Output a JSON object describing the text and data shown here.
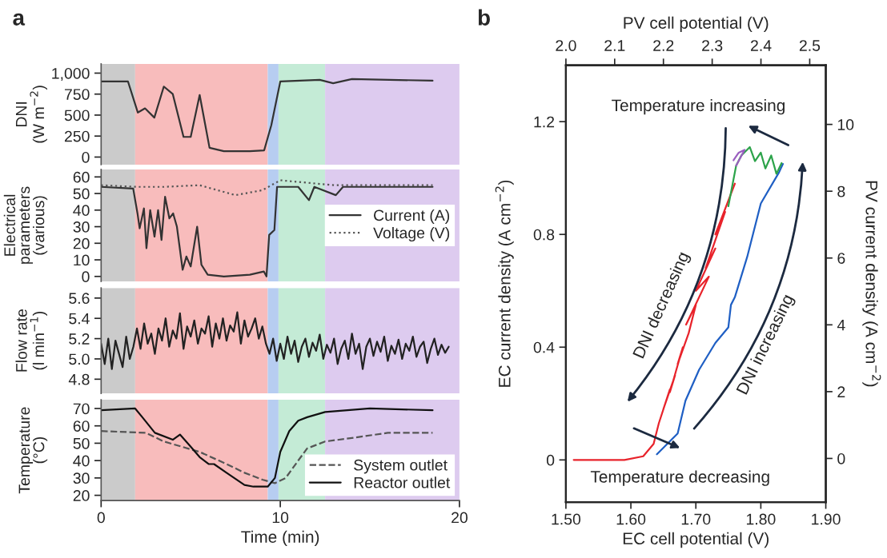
{
  "chart_data": [
    {
      "type": "line",
      "ylabel": "DNI\n(W m$^{−2}$)",
      "annotations": [
        "a"
      ],
      "xlim": [
        0,
        20
      ],
      "ylim": [
        -90,
        1110
      ],
      "yticks": [
        0,
        250,
        500,
        750,
        {
          "value": 1000,
          "label": "1,000"
        }
      ],
      "tick_labels": "y",
      "grid": false,
      "legend": false,
      "bands": [
        {
          "axis": "x",
          "from": 0,
          "to": 1.9,
          "color": "#cbcbcb"
        },
        {
          "axis": "x",
          "from": 1.9,
          "to": 9.3,
          "color": "#f8bcbc"
        },
        {
          "axis": "x",
          "from": 9.3,
          "to": 9.9,
          "color": "#b7cdf1"
        },
        {
          "axis": "x",
          "from": 9.9,
          "to": 12.5,
          "color": "#c4ebd6"
        },
        {
          "axis": "x",
          "from": 12.5,
          "to": 20,
          "color": "#ddcbef"
        }
      ],
      "series": [
        {
          "color": "#333333",
          "line_style": "solid",
          "x": [
            0,
            1.5,
            2.05,
            2.45,
            2.97,
            3.5,
            4.0,
            4.6,
            5.0,
            5.5,
            6.05,
            6.85,
            8.3,
            9.1,
            9.5,
            10.0,
            12.2,
            12.95,
            14.0,
            18.5
          ],
          "values": [
            900,
            900,
            530,
            580,
            470,
            840,
            750,
            240,
            240,
            740,
            110,
            70,
            70,
            80,
            380,
            900,
            920,
            880,
            930,
            910
          ]
        }
      ]
    },
    {
      "type": "line",
      "ylabel": "Electrical\nparameters\n(various)",
      "xlim": [
        0,
        20
      ],
      "ylim": [
        -3,
        64.5
      ],
      "yticks": [
        0,
        10,
        20,
        30,
        40,
        50,
        60
      ],
      "tick_labels": "y",
      "grid": false,
      "legend": "right",
      "bands": [
        {
          "axis": "x",
          "from": 0,
          "to": 1.9,
          "color": "#cbcbcb"
        },
        {
          "axis": "x",
          "from": 1.9,
          "to": 9.3,
          "color": "#f8bcbc"
        },
        {
          "axis": "x",
          "from": 9.3,
          "to": 9.9,
          "color": "#b7cdf1"
        },
        {
          "axis": "x",
          "from": 9.9,
          "to": 12.5,
          "color": "#c4ebd6"
        },
        {
          "axis": "x",
          "from": 12.5,
          "to": 20,
          "color": "#ddcbef"
        }
      ],
      "series": [
        {
          "name": "Current (A)",
          "color": "#333333",
          "line_style": "solid",
          "x": [
            0,
            1.79,
            2.03,
            2.15,
            2.39,
            2.53,
            2.74,
            2.98,
            3.18,
            3.37,
            3.57,
            3.81,
            4.02,
            4.23,
            4.55,
            4.76,
            5.0,
            5.36,
            5.6,
            5.95,
            6.85,
            8.3,
            9.08,
            9.23,
            9.38,
            9.67,
            9.82,
            11.0,
            11.6,
            11.9,
            13.1,
            13.5,
            18.5
          ],
          "values": [
            54,
            53,
            38,
            29,
            41,
            17,
            40,
            24,
            40,
            22,
            48,
            35,
            38,
            30,
            4,
            12,
            6,
            30,
            7,
            1,
            0,
            1,
            3,
            0,
            25,
            28,
            54,
            54,
            46,
            54,
            49,
            54,
            54
          ]
        },
        {
          "name": "Voltage (V)",
          "color": "#555555",
          "line_style": "dotted",
          "x": [
            0,
            2,
            3.5,
            5.5,
            7.5,
            9,
            10,
            12,
            13,
            18.5
          ],
          "values": [
            55,
            54,
            54,
            55,
            49,
            52,
            58,
            56,
            55,
            55
          ]
        }
      ]
    },
    {
      "type": "line",
      "ylabel": "Flow rate\n(l min$^{−1}$)",
      "xlim": [
        0,
        20
      ],
      "ylim": [
        4.66,
        5.7
      ],
      "yticks": [
        4.8,
        {
          "value": 5.0,
          "label": "5.0"
        },
        5.2,
        5.4,
        5.6
      ],
      "tick_labels": "y",
      "grid": false,
      "legend": false,
      "bands": [
        {
          "axis": "x",
          "from": 0,
          "to": 1.9,
          "color": "#cbcbcb"
        },
        {
          "axis": "x",
          "from": 1.9,
          "to": 9.3,
          "color": "#f8bcbc"
        },
        {
          "axis": "x",
          "from": 9.3,
          "to": 9.9,
          "color": "#b7cdf1"
        },
        {
          "axis": "x",
          "from": 9.9,
          "to": 12.5,
          "color": "#c4ebd6"
        },
        {
          "axis": "x",
          "from": 12.5,
          "to": 20,
          "color": "#ddcbef"
        }
      ],
      "series": [
        {
          "color": "#222222",
          "line_style": "solid",
          "x": [
            0,
            0.2,
            0.4,
            0.6,
            0.8,
            1.0,
            1.2,
            1.4,
            1.6,
            1.8,
            2.0,
            2.2,
            2.4,
            2.6,
            2.8,
            3.0,
            3.2,
            3.4,
            3.6,
            3.8,
            4.0,
            4.2,
            4.4,
            4.6,
            4.8,
            5.0,
            5.2,
            5.4,
            5.6,
            5.8,
            6.0,
            6.2,
            6.4,
            6.6,
            6.8,
            7.0,
            7.2,
            7.4,
            7.6,
            7.8,
            8.0,
            8.2,
            8.4,
            8.6,
            8.8,
            9.0,
            9.2,
            9.4,
            9.6,
            9.8,
            10.0,
            10.2,
            10.4,
            10.6,
            10.8,
            11.0,
            11.2,
            11.4,
            11.6,
            11.8,
            12.0,
            12.2,
            12.4,
            12.6,
            12.8,
            13.0,
            13.2,
            13.4,
            13.6,
            13.8,
            14.0,
            14.2,
            14.4,
            14.6,
            14.8,
            15.0,
            15.2,
            15.4,
            15.6,
            15.8,
            16.0,
            16.2,
            16.4,
            16.6,
            16.8,
            17.0,
            17.2,
            17.4,
            17.6,
            17.8,
            18.0,
            18.2,
            18.4,
            18.6,
            18.8,
            19.0,
            19.2,
            19.4
          ],
          "values": [
            5.15,
            4.95,
            5.2,
            4.9,
            5.18,
            5.05,
            4.92,
            5.22,
            5.0,
            5.12,
            5.3,
            5.1,
            5.35,
            5.15,
            5.25,
            5.05,
            5.3,
            5.18,
            5.4,
            5.12,
            5.28,
            5.2,
            5.45,
            5.1,
            5.32,
            5.22,
            5.38,
            5.15,
            5.3,
            5.25,
            5.42,
            5.12,
            5.35,
            5.2,
            5.4,
            5.18,
            5.33,
            5.27,
            5.46,
            5.15,
            5.38,
            5.22,
            5.3,
            5.4,
            5.2,
            5.32,
            5.15,
            5.05,
            5.2,
            4.98,
            5.15,
            5.0,
            5.22,
            5.05,
            5.18,
            4.97,
            5.12,
            5.2,
            5.02,
            5.16,
            5.08,
            5.24,
            5.0,
            5.14,
            5.06,
            5.2,
            4.95,
            5.1,
            5.18,
            5.0,
            5.25,
            5.05,
            5.15,
            4.9,
            5.12,
            5.2,
            5.03,
            5.17,
            5.07,
            5.22,
            4.98,
            5.13,
            5.05,
            5.19,
            5.0,
            5.15,
            5.08,
            5.22,
            5.02,
            5.12,
            5.17,
            4.96,
            5.1,
            5.2,
            5.04,
            5.14,
            5.06,
            5.12
          ]
        }
      ]
    },
    {
      "type": "line",
      "ylabel": "Temperature\n(°C)",
      "xlabel": "Time (min)",
      "xlim": [
        0,
        20
      ],
      "xticks": [
        0,
        10,
        20
      ],
      "ylim": [
        17,
        75
      ],
      "yticks": [
        20,
        30,
        40,
        50,
        60,
        70
      ],
      "grid": false,
      "legend": "bottom right",
      "bands": [
        {
          "axis": "x",
          "from": 0,
          "to": 1.9,
          "color": "#cbcbcb"
        },
        {
          "axis": "x",
          "from": 1.9,
          "to": 9.3,
          "color": "#f8bcbc"
        },
        {
          "axis": "x",
          "from": 9.3,
          "to": 9.9,
          "color": "#b7cdf1"
        },
        {
          "axis": "x",
          "from": 9.9,
          "to": 12.5,
          "color": "#c4ebd6"
        },
        {
          "axis": "x",
          "from": 12.5,
          "to": 20,
          "color": "#ddcbef"
        }
      ],
      "series": [
        {
          "name": "System outlet",
          "color": "#555555",
          "line_style": "dashed",
          "x": [
            0,
            2.5,
            3.5,
            4.5,
            5.5,
            7,
            8,
            9,
            9.7,
            10.3,
            11,
            11.5,
            12.5,
            14,
            16,
            18.5
          ],
          "values": [
            57,
            56,
            51,
            48,
            45,
            38,
            33,
            29,
            27,
            30,
            40,
            47,
            51,
            53,
            56,
            56
          ]
        },
        {
          "name": "Reactor outlet",
          "color": "#111111",
          "line_style": "solid",
          "x": [
            0,
            1.9,
            2.3,
            3,
            4,
            4.4,
            5,
            5.5,
            6,
            6.3,
            7,
            8,
            8.5,
            9.3,
            9.7,
            10,
            10.5,
            11,
            11.5,
            12.5,
            15,
            18.5
          ],
          "values": [
            69,
            70,
            65,
            56,
            52,
            55,
            48,
            42,
            38,
            38,
            33,
            26,
            25,
            25,
            30,
            45,
            57,
            63,
            65,
            68,
            70,
            69
          ]
        }
      ]
    },
    {
      "type": "line",
      "xlabel": "EC cell potential (V)",
      "ylabel": "EC current density (A cm$^{−2}$)",
      "x2label": "PV cell potential (V)",
      "y2label": "PV current density (A cm$^{−2}$)",
      "annotations": [
        "b",
        "Temperature increasing",
        "DNI decreasing",
        "DNI increasing",
        "Temperature decreasing"
      ],
      "xlim": [
        1.5,
        1.9
      ],
      "xticks": [
        {
          "value": 1.5,
          "label": "1.50"
        },
        {
          "value": 1.6,
          "label": "1.60"
        },
        {
          "value": 1.7,
          "label": "1.70"
        },
        {
          "value": 1.8,
          "label": "1.80"
        },
        {
          "value": 1.9,
          "label": "1.90"
        }
      ],
      "ylim": [
        -0.15,
        1.4
      ],
      "yticks": [
        0,
        0.4,
        0.8,
        1.2
      ],
      "x2lim": [
        2.0,
        2.533
      ],
      "x2ticks": [
        {
          "value": 2.0,
          "label": "2.0"
        },
        2.1,
        2.2,
        2.3,
        2.4,
        2.5
      ],
      "y2lim": [
        -1.31,
        11.77
      ],
      "y2ticks": [
        0,
        2,
        4,
        6,
        8,
        10
      ],
      "grid": false,
      "legend": false,
      "series": [
        {
          "color": "#e8232b",
          "x": [
            1.512,
            1.59,
            1.619,
            1.635,
            1.643,
            1.66,
            1.65,
            1.668,
            1.66,
            1.68,
            1.672,
            1.689,
            1.7,
            1.685,
            1.72,
            1.7,
            1.73,
            1.715,
            1.745,
            1.73,
            1.76
          ],
          "values": [
            0,
            0,
            0.013,
            0.057,
            0.13,
            0.25,
            0.18,
            0.3,
            0.24,
            0.4,
            0.34,
            0.45,
            0.55,
            0.48,
            0.65,
            0.6,
            0.75,
            0.68,
            0.88,
            0.8,
            0.98
          ]
        },
        {
          "color": "#1f5fc4",
          "x": [
            1.64,
            1.672,
            1.684,
            1.705,
            1.73,
            1.75,
            1.754,
            1.76,
            1.779,
            1.8,
            1.828,
            1.834
          ],
          "values": [
            0.02,
            0.094,
            0.21,
            0.32,
            0.415,
            0.47,
            0.55,
            0.577,
            0.72,
            0.91,
            1.02,
            1.05
          ]
        },
        {
          "color": "#2ca34a",
          "x": [
            1.75,
            1.762,
            1.77,
            1.783,
            1.791,
            1.8,
            1.807,
            1.816,
            1.824,
            1.832
          ],
          "values": [
            0.9,
            1.044,
            1.08,
            1.11,
            1.06,
            1.09,
            1.034,
            1.08,
            1.015,
            1.053
          ]
        },
        {
          "color": "#9b5fc0",
          "x": [
            1.758,
            1.766,
            1.775,
            1.762
          ],
          "values": [
            1.063,
            1.09,
            1.1,
            1.044
          ]
        }
      ]
    }
  ]
}
